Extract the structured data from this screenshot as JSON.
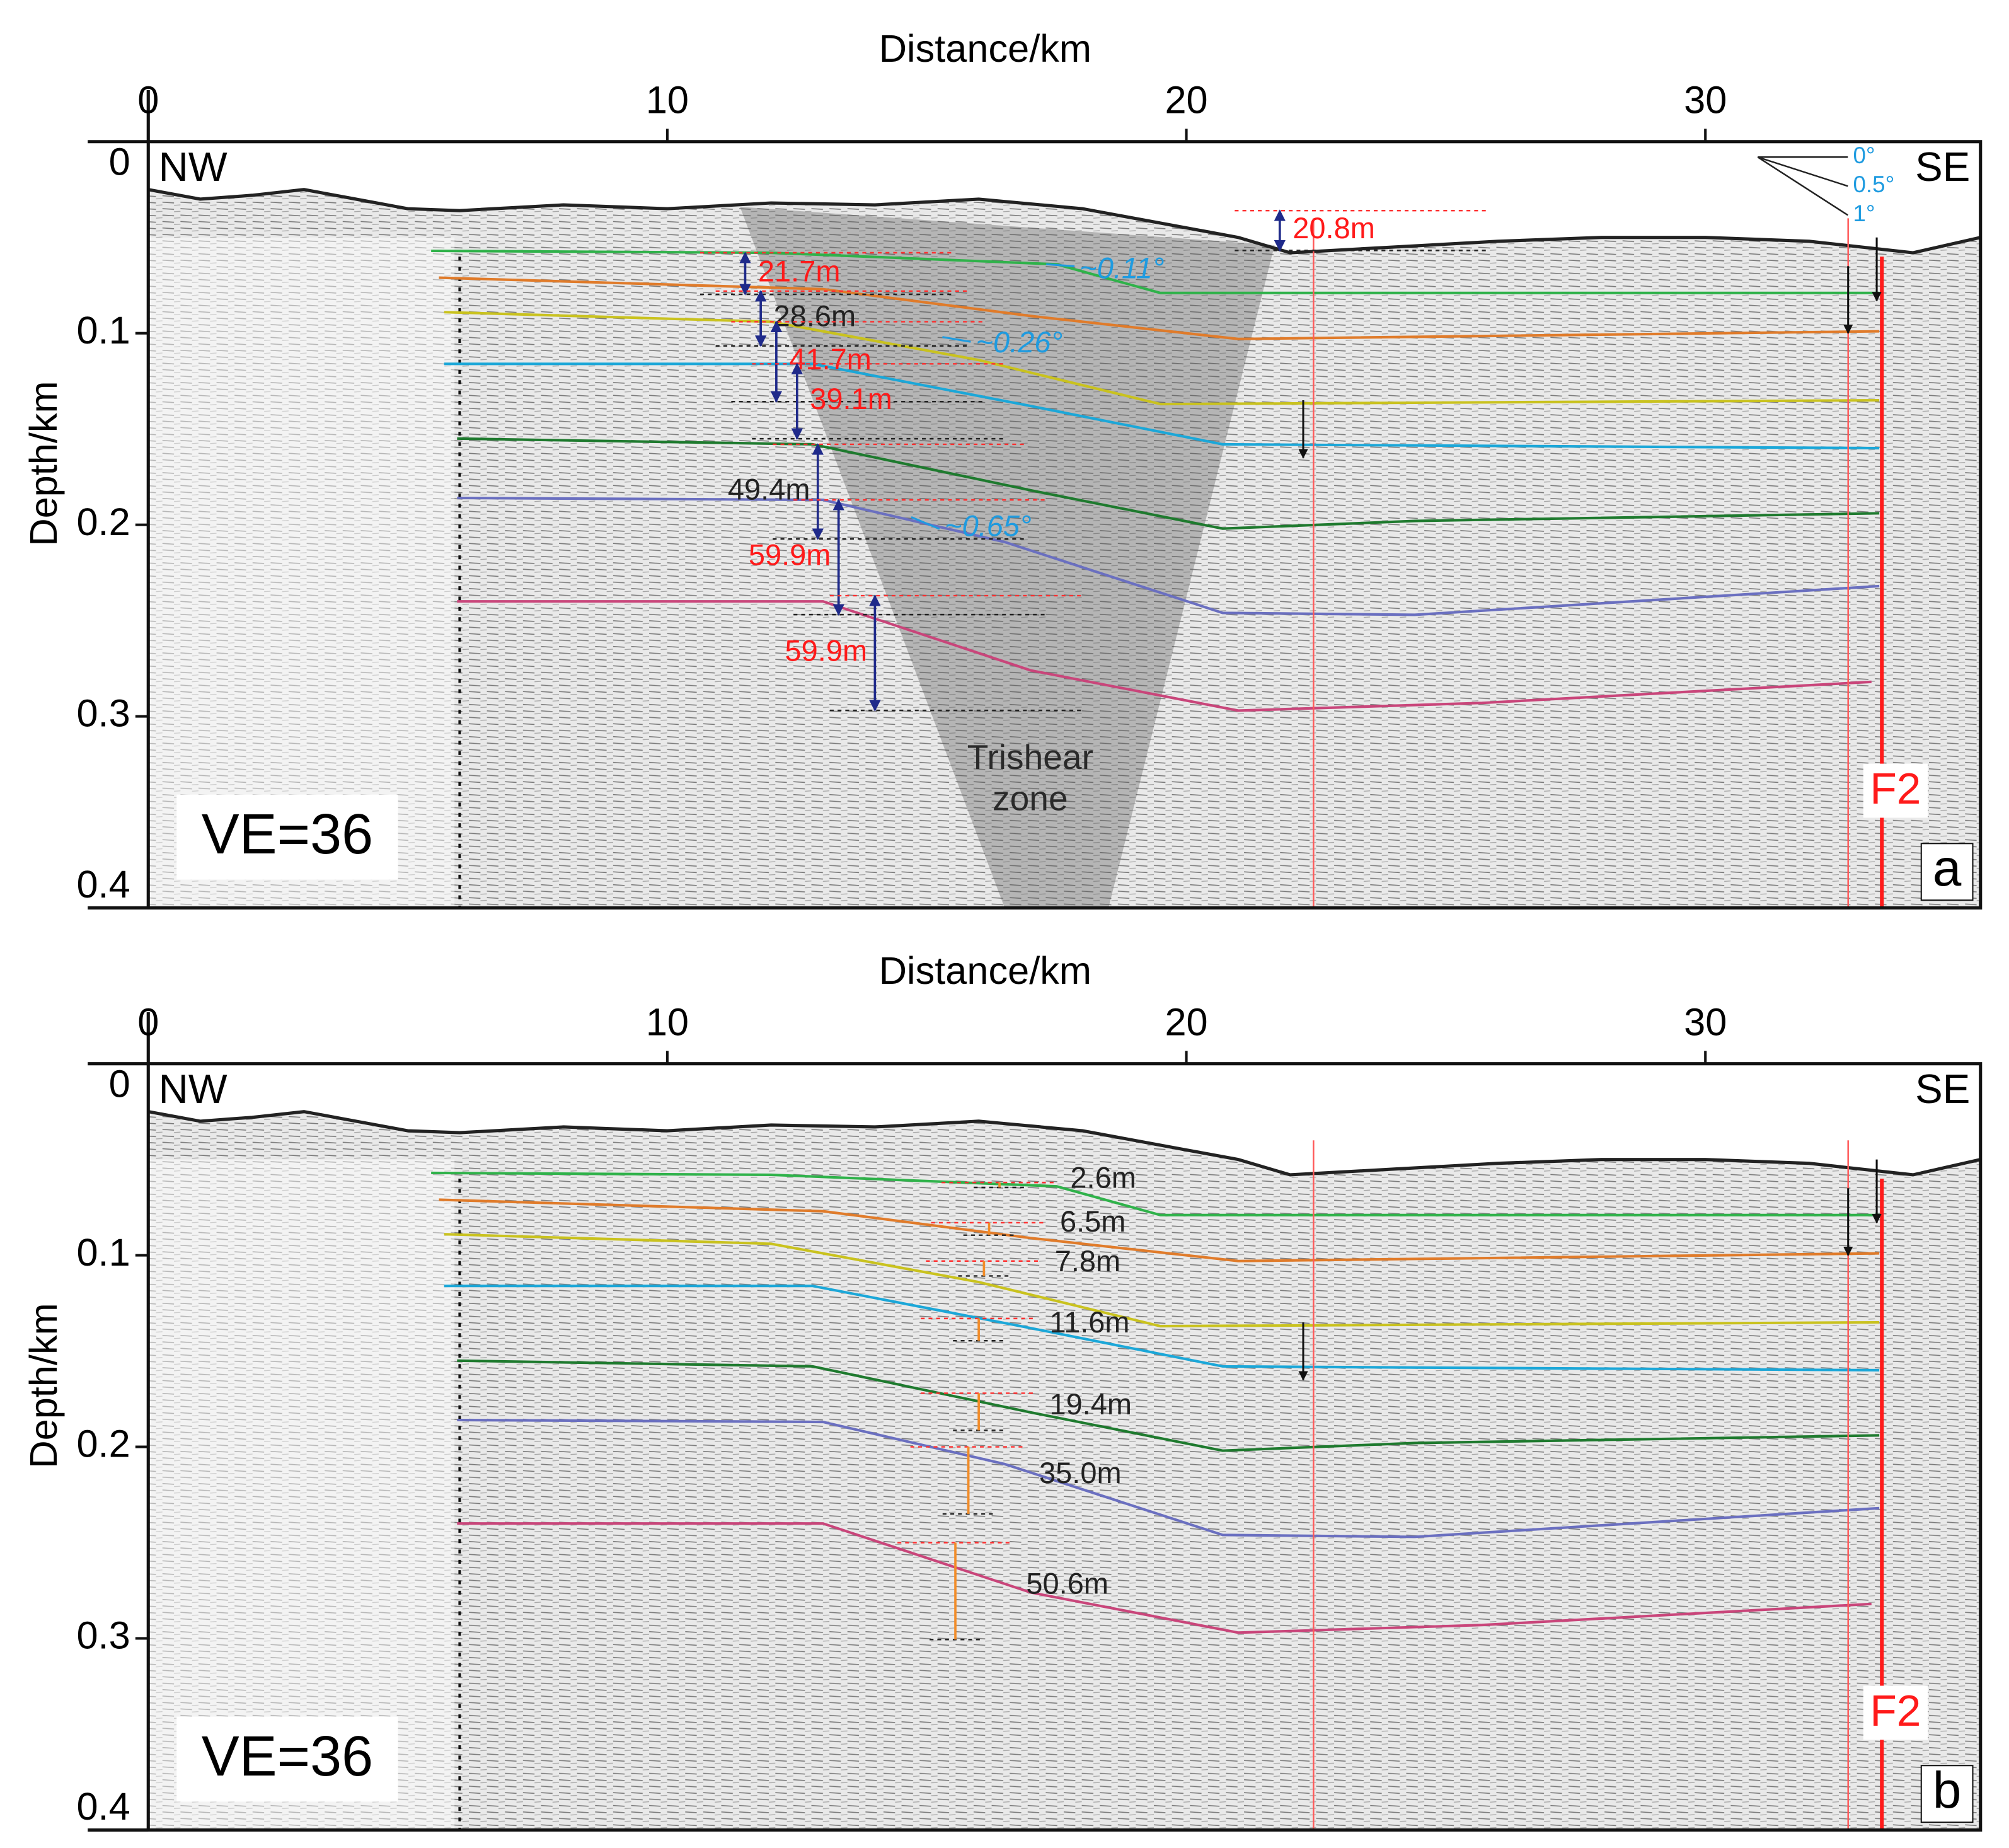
{
  "chart_data": [
    {
      "type": "profile",
      "xlabel": "Distance/km",
      "ylabel": "Depth/km",
      "xlim": [
        0,
        35.3
      ],
      "xticks": [
        0,
        10,
        20,
        30
      ],
      "ylim": [
        0,
        0.4
      ],
      "yticks": [
        0,
        0.1,
        0.2,
        0.3,
        0.4
      ],
      "y_inverted": true,
      "left_label": "NW",
      "right_label": "SE",
      "ve_label": "VE=36",
      "panel_label": "a",
      "fault_label": "F2",
      "zone_label": [
        "Trishear",
        "zone"
      ],
      "series": [
        {
          "color": "#222222",
          "x": [
            0,
            1,
            2,
            3,
            4,
            5,
            6,
            8,
            10,
            12,
            14,
            16,
            18,
            20,
            21,
            22,
            24,
            26,
            28,
            30,
            32,
            34,
            35.3
          ],
          "values": [
            0.025,
            0.03,
            0.028,
            0.025,
            0.03,
            0.035,
            0.036,
            0.033,
            0.035,
            0.032,
            0.033,
            0.03,
            0.035,
            0.045,
            0.05,
            0.058,
            0.055,
            0.052,
            0.05,
            0.05,
            0.052,
            0.058,
            0.05
          ]
        },
        {
          "color": "#2fb24a",
          "x": [
            5.45,
            12,
            17.5,
            19.5,
            33.35
          ],
          "values": [
            0.057,
            0.058,
            0.064,
            0.079,
            0.079
          ]
        },
        {
          "color": "#e07b2a",
          "x": [
            5.6,
            13,
            17,
            21,
            33.35
          ],
          "values": [
            0.071,
            0.077,
            0.091,
            0.103,
            0.099
          ]
        },
        {
          "color": "#c9c21e",
          "x": [
            5.7,
            12,
            16,
            19.5,
            33.35
          ],
          "values": [
            0.089,
            0.094,
            0.114,
            0.137,
            0.135
          ]
        },
        {
          "color": "#1ba7d8",
          "x": [
            5.7,
            12.8,
            17,
            20.7,
            33.35
          ],
          "values": [
            0.116,
            0.116,
            0.138,
            0.158,
            0.16
          ]
        },
        {
          "color": "#1e7a2e",
          "x": [
            5.95,
            12.8,
            17,
            20.7,
            24.4,
            33.35
          ],
          "values": [
            0.155,
            0.158,
            0.182,
            0.202,
            0.198,
            0.194
          ]
        },
        {
          "color": "#6a6fc0",
          "x": [
            5.95,
            13,
            16.5,
            20.7,
            24.4,
            33.35
          ],
          "values": [
            0.186,
            0.187,
            0.209,
            0.246,
            0.247,
            0.232
          ]
        },
        {
          "color": "#c9457a",
          "x": [
            5.95,
            13,
            17,
            21,
            25.7,
            33.2
          ],
          "values": [
            0.24,
            0.24,
            0.276,
            0.297,
            0.293,
            0.282
          ]
        }
      ],
      "faults": [
        {
          "x": 22.45,
          "color": "#ff5a5a"
        },
        {
          "x": 32.75,
          "color": "#ff5a5a"
        },
        {
          "x": 33.4,
          "color": "#ff1a1a"
        }
      ],
      "throws": {
        "values": [
          20.8,
          21.7,
          28.6,
          41.7,
          39.1,
          49.4,
          59.9,
          59.9
        ],
        "value_labels": [
          "20.8m",
          "21.7m",
          "28.6m",
          "41.7m",
          "39.1m",
          "49.4m",
          "59.9m",
          "59.9m"
        ],
        "label_colors": [
          "#ff1a1a",
          "#ff1a1a",
          "#222222",
          "#ff1a1a",
          "#ff1a1a",
          "#222222",
          "#ff1a1a",
          "#ff1a1a"
        ],
        "color": "#1f2a8a"
      },
      "dips": {
        "values": [
          0.11,
          0.26,
          0.65
        ],
        "value_labels": [
          "~0.11°",
          "~0.26°",
          "~0.65°"
        ],
        "color": "#1e9be0"
      },
      "dip_scale": {
        "values": [
          0,
          0.5,
          1
        ],
        "value_labels": [
          "0°",
          "0.5°",
          "1°"
        ],
        "color": "#1e9be0"
      }
    },
    {
      "type": "profile",
      "xlabel": "Distance/km",
      "ylabel": "Depth/km",
      "xlim": [
        0,
        35.3
      ],
      "xticks": [
        0,
        10,
        20,
        30
      ],
      "ylim": [
        0,
        0.4
      ],
      "yticks": [
        0,
        0.1,
        0.2,
        0.3,
        0.4
      ],
      "y_inverted": true,
      "left_label": "NW",
      "right_label": "SE",
      "ve_label": "VE=36",
      "panel_label": "b",
      "fault_label": "F2",
      "series": [
        {
          "color": "#222222",
          "x": [
            0,
            1,
            2,
            3,
            4,
            5,
            6,
            8,
            10,
            12,
            14,
            16,
            18,
            20,
            21,
            22,
            24,
            26,
            28,
            30,
            32,
            34,
            35.3
          ],
          "values": [
            0.025,
            0.03,
            0.028,
            0.025,
            0.03,
            0.035,
            0.036,
            0.033,
            0.035,
            0.032,
            0.033,
            0.03,
            0.035,
            0.045,
            0.05,
            0.058,
            0.055,
            0.052,
            0.05,
            0.05,
            0.052,
            0.058,
            0.05
          ]
        },
        {
          "color": "#2fb24a",
          "x": [
            5.45,
            12,
            17.5,
            19.5,
            33.35
          ],
          "values": [
            0.057,
            0.058,
            0.064,
            0.079,
            0.079
          ]
        },
        {
          "color": "#e07b2a",
          "x": [
            5.6,
            13,
            17,
            21,
            33.35
          ],
          "values": [
            0.071,
            0.077,
            0.091,
            0.103,
            0.099
          ]
        },
        {
          "color": "#c9c21e",
          "x": [
            5.7,
            12,
            16,
            19.5,
            33.35
          ],
          "values": [
            0.089,
            0.094,
            0.114,
            0.137,
            0.135
          ]
        },
        {
          "color": "#1ba7d8",
          "x": [
            5.7,
            12.8,
            17,
            20.7,
            33.35
          ],
          "values": [
            0.116,
            0.116,
            0.138,
            0.158,
            0.16
          ]
        },
        {
          "color": "#1e7a2e",
          "x": [
            5.95,
            12.8,
            17,
            20.7,
            24.4,
            33.35
          ],
          "values": [
            0.155,
            0.158,
            0.182,
            0.202,
            0.198,
            0.194
          ]
        },
        {
          "color": "#6a6fc0",
          "x": [
            5.95,
            13,
            16.5,
            20.7,
            24.4,
            33.35
          ],
          "values": [
            0.186,
            0.187,
            0.209,
            0.246,
            0.247,
            0.232
          ]
        },
        {
          "color": "#c9457a",
          "x": [
            5.95,
            13,
            17,
            21,
            25.7,
            33.2
          ],
          "values": [
            0.24,
            0.24,
            0.276,
            0.297,
            0.293,
            0.282
          ]
        }
      ],
      "faults": [
        {
          "x": 22.45,
          "color": "#ff5a5a"
        },
        {
          "x": 32.75,
          "color": "#ff5a5a"
        },
        {
          "x": 33.4,
          "color": "#ff1a1a"
        }
      ],
      "throws": {
        "values": [
          2.6,
          6.5,
          7.8,
          11.6,
          19.4,
          35.0,
          50.6
        ],
        "value_labels": [
          "2.6m",
          "6.5m",
          "7.8m",
          "11.6m",
          "19.4m",
          "35.0m",
          "50.6m"
        ],
        "label_colors": [
          "#222222",
          "#222222",
          "#222222",
          "#222222",
          "#222222",
          "#222222",
          "#222222"
        ],
        "color": "#f28c28"
      }
    }
  ]
}
